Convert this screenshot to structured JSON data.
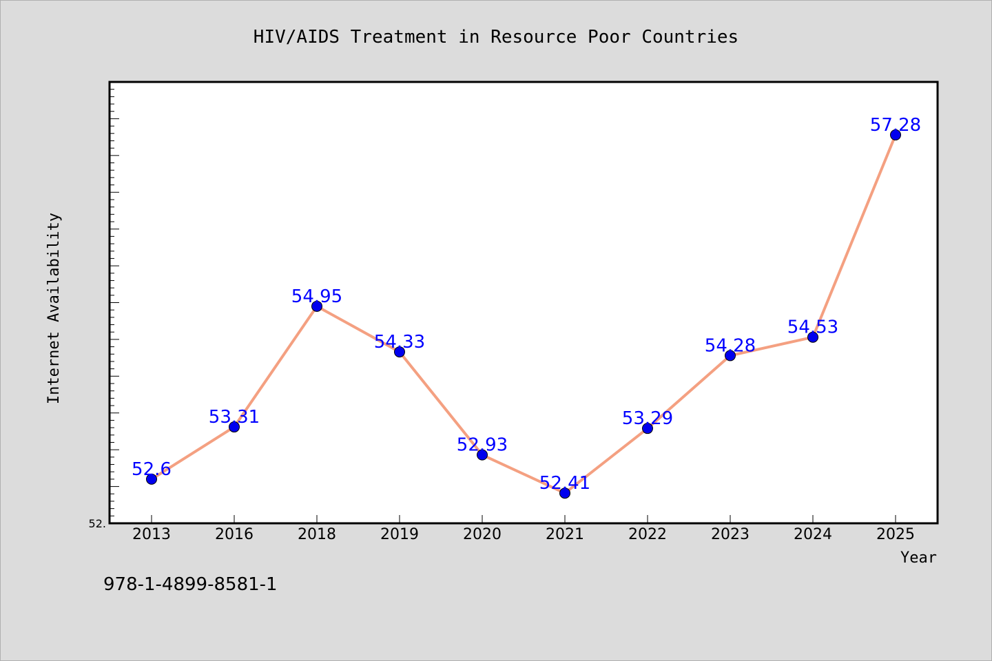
{
  "chart_data": {
    "type": "line",
    "title": "HIV/AIDS Treatment in Resource Poor Countries",
    "xlabel": "Year",
    "ylabel": "Internet Availability",
    "categories": [
      "2013",
      "2016",
      "2018",
      "2019",
      "2020",
      "2021",
      "2022",
      "2023",
      "2024",
      "2025"
    ],
    "series": [
      {
        "values": [
          52.6,
          53.31,
          54.95,
          54.33,
          52.93,
          52.41,
          53.29,
          54.28,
          54.53,
          57.28
        ]
      }
    ],
    "data_labels": [
      "52.6",
      "53.31",
      "54.95",
      "54.33",
      "52.93",
      "52.41",
      "53.29",
      "54.28",
      "54.53",
      "57.28"
    ],
    "y_tick_label": "52.",
    "ylim": [
      52.0,
      58.0
    ],
    "grid": false,
    "colors": {
      "line": "#f4a081",
      "marker": "#0000ee",
      "label": "#0000ff",
      "plot_bg": "#ffffff",
      "page_bg": "#dcdcdc"
    }
  },
  "footer": {
    "isbn": "978-1-4899-8581-1"
  }
}
